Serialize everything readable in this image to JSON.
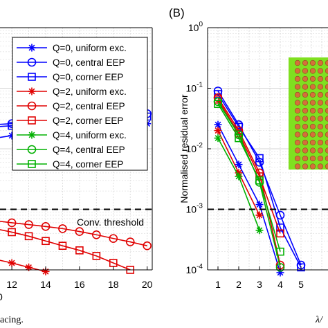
{
  "panel_b_label": "(B)",
  "caption_left": "acing.",
  "caption_right": "λ/",
  "colors": {
    "blue": "#0000ff",
    "red": "#e00000",
    "green": "#00b000",
    "grid": "#d9d9d9",
    "inset_bg": "#80e020",
    "dot": "#d4703a"
  },
  "chart_data": [
    {
      "type": "line",
      "panel": "A",
      "title": "",
      "xlabel": "",
      "ylabel": "",
      "xlim": [
        11.3,
        20.3
      ],
      "x_ticks": [
        "12",
        "14",
        "16",
        "18",
        "20"
      ],
      "x_tick_values": [
        12,
        14,
        16,
        18,
        20
      ],
      "y_scale": "log",
      "ylim_exp": [
        -4,
        0
      ],
      "annotation": "Conv. threshold",
      "threshold": 0.001,
      "legend_position": "top",
      "legend": [
        {
          "name": "Q=0, uniform exc.",
          "color": "#0000ff",
          "marker": "asterisk"
        },
        {
          "name": "Q=0, central EEP",
          "color": "#0000ff",
          "marker": "circle"
        },
        {
          "name": "Q=0, corner EEP",
          "color": "#0000ff",
          "marker": "square"
        },
        {
          "name": "Q=2, uniform exc.",
          "color": "#e00000",
          "marker": "asterisk"
        },
        {
          "name": "Q=2, central EEP",
          "color": "#e00000",
          "marker": "circle"
        },
        {
          "name": "Q=2, corner EEP",
          "color": "#e00000",
          "marker": "square"
        },
        {
          "name": "Q=4, uniform exc.",
          "color": "#00b000",
          "marker": "asterisk"
        },
        {
          "name": "Q=4, central EEP",
          "color": "#00b000",
          "marker": "circle"
        },
        {
          "name": "Q=4, corner EEP",
          "color": "#00b000",
          "marker": "square"
        }
      ],
      "series": [
        {
          "color": "#0000ff",
          "marker": "asterisk",
          "x": [
            11,
            12,
            13,
            14,
            15,
            16,
            17,
            18,
            19,
            20
          ],
          "y": [
            0.015,
            0.0165,
            0.018,
            0.019,
            0.02,
            0.021,
            0.022,
            0.023,
            0.024,
            0.026
          ]
        },
        {
          "color": "#0000ff",
          "marker": "circle",
          "x": [
            11,
            12,
            13,
            14,
            15,
            16,
            17,
            18,
            19,
            20
          ],
          "y": [
            0.025,
            0.026,
            0.027,
            0.028,
            0.029,
            0.03,
            0.031,
            0.033,
            0.035,
            0.038
          ]
        },
        {
          "color": "#0000ff",
          "marker": "square",
          "x": [
            11,
            12,
            13,
            14,
            15,
            16,
            17,
            18,
            19,
            20
          ],
          "y": [
            0.023,
            0.024,
            0.025,
            0.026,
            0.027,
            0.028,
            0.029,
            0.03,
            0.032,
            0.034
          ]
        },
        {
          "color": "#e00000",
          "marker": "asterisk",
          "x": [
            11,
            12,
            13,
            14
          ],
          "y": [
            0.00015,
            0.00013,
            0.00011,
            9.4e-05
          ]
        },
        {
          "color": "#e00000",
          "marker": "circle",
          "x": [
            11,
            12,
            13,
            14,
            15,
            16,
            17,
            18,
            19,
            20
          ],
          "y": [
            0.00065,
            0.0006,
            0.00056,
            0.00052,
            0.00048,
            0.00043,
            0.00038,
            0.00033,
            0.00029,
            0.00025
          ]
        },
        {
          "color": "#e00000",
          "marker": "square",
          "x": [
            11,
            12,
            13,
            14,
            15,
            16,
            17,
            18,
            19
          ],
          "y": [
            0.00048,
            0.00042,
            0.00036,
            0.0003,
            0.00025,
            0.00021,
            0.00017,
            0.00013,
            0.0001
          ]
        }
      ]
    },
    {
      "type": "line",
      "panel": "B",
      "title": "",
      "xlabel": "",
      "ylabel": "Normalised residual error",
      "xlim": [
        0.5,
        6.5
      ],
      "x_ticks": [
        "1",
        "2",
        "3",
        "4",
        "5"
      ],
      "x_tick_values": [
        1,
        2,
        3,
        4,
        5
      ],
      "y_scale": "log",
      "ylim_exp": [
        -4,
        0
      ],
      "y_tick_exps": [
        "0",
        "-1",
        "-2",
        "-3",
        "-4"
      ],
      "y_tick_base": "10",
      "threshold": 0.001,
      "series": [
        {
          "color": "#0000ff",
          "marker": "asterisk",
          "x": [
            1,
            2,
            3,
            4
          ],
          "y": [
            0.025,
            0.0055,
            0.0012,
            9e-05
          ]
        },
        {
          "color": "#0000ff",
          "marker": "circle",
          "x": [
            1,
            2,
            3,
            4,
            5
          ],
          "y": [
            0.09,
            0.025,
            0.006,
            0.0008,
            0.00012
          ]
        },
        {
          "color": "#0000ff",
          "marker": "square",
          "x": [
            1,
            2,
            3,
            4,
            5
          ],
          "y": [
            0.08,
            0.023,
            0.007,
            0.0005,
            0.00011
          ]
        },
        {
          "color": "#e00000",
          "marker": "asterisk",
          "x": [
            1,
            2,
            3
          ],
          "y": [
            0.02,
            0.004,
            0.0008
          ]
        },
        {
          "color": "#e00000",
          "marker": "circle",
          "x": [
            1,
            2,
            3,
            4
          ],
          "y": [
            0.07,
            0.02,
            0.004,
            0.00012
          ]
        },
        {
          "color": "#e00000",
          "marker": "square",
          "x": [
            1,
            2,
            3,
            4
          ],
          "y": [
            0.065,
            0.018,
            0.0035,
            0.0004
          ]
        },
        {
          "color": "#00b000",
          "marker": "asterisk",
          "x": [
            1,
            2,
            3
          ],
          "y": [
            0.015,
            0.0035,
            0.00045
          ]
        },
        {
          "color": "#00b000",
          "marker": "circle",
          "x": [
            1,
            2,
            3,
            4
          ],
          "y": [
            0.06,
            0.017,
            0.0028,
            0.00011
          ]
        },
        {
          "color": "#00b000",
          "marker": "square",
          "x": [
            1,
            2,
            3,
            4
          ],
          "y": [
            0.055,
            0.015,
            0.003,
            0.0002
          ]
        }
      ]
    }
  ]
}
